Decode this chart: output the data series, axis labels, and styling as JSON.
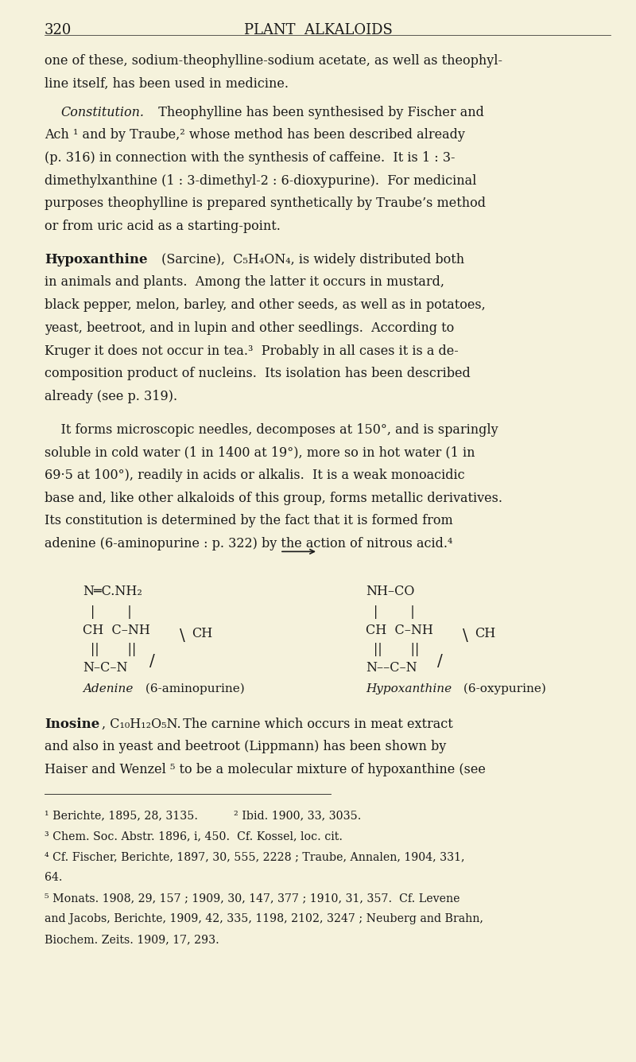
{
  "bg_color": "#f5f2dc",
  "text_color": "#1a1a1a",
  "page_number": "320",
  "page_title": "PLANT  ALKALOIDS",
  "line1": "one of these, sodium-theophylline-sodium acetate, as well as theophyl-",
  "line2": "line itself, has been used in medicine.",
  "para1": [
    "Ach ¹ and by Traube,² whose method has been described already",
    "(p. 316) in connection with the synthesis of caffeine.  It is 1 : 3-",
    "dimethylxanthine (1 : 3-dimethyl-2 : 6-dioxypurine).  For medicinal",
    "purposes theophylline is prepared synthetically by Traube’s method",
    "or from uric acid as a starting-point."
  ],
  "hypo_lines": [
    "in animals and plants.  Among the latter it occurs in mustard,",
    "black pepper, melon, barley, and other seeds, as well as in potatoes,",
    "yeast, beetroot, and in lupin and other seedlings.  According to",
    "Kruger it does not occur in tea.³  Probably in all cases it is a de-",
    "composition product of nucleins.  Its isolation has been described",
    "already (see p. 319)."
  ],
  "para3": [
    "    It forms microscopic needles, decomposes at 150°, and is sparingly",
    "soluble in cold water (1 in 1400 at 19°), more so in hot water (1 in",
    "69·5 at 100°), readily in acids or alkalis.  It is a weak monoacidic",
    "base and, like other alkaloids of this group, forms metallic derivatives.",
    "Its constitution is determined by the fact that it is formed from",
    "adenine (6-aminopurine : p. 322) by the action of nitrous acid.⁴"
  ],
  "inosine_lines": [
    "and also in yeast and beetroot (Lippmann) has been shown by",
    "Haiser and Wenzel ⁵ to be a molecular mixture of hypoxanthine (see"
  ],
  "footnotes": [
    "¹ Berichte, 1895, 28, 3135.          ² Ibid. 1900, 33, 3035.",
    "³ Chem. Soc. Abstr. 1896, i, 450.  Cf. Kossel, loc. cit.",
    "⁴ Cf. Fischer, Berichte, 1897, 30, 555, 2228 ; Traube, Annalen, 1904, 331,",
    "64.",
    "⁵ Monats. 1908, 29, 157 ; 1909, 30, 147, 377 ; 1910, 31, 357.  Cf. Levene",
    "and Jacobs, Berichte, 1909, 42, 335, 1198, 2102, 3247 ; Neuberg and Brahn,",
    "Biochem. Zeits. 1909, 17, 293."
  ]
}
